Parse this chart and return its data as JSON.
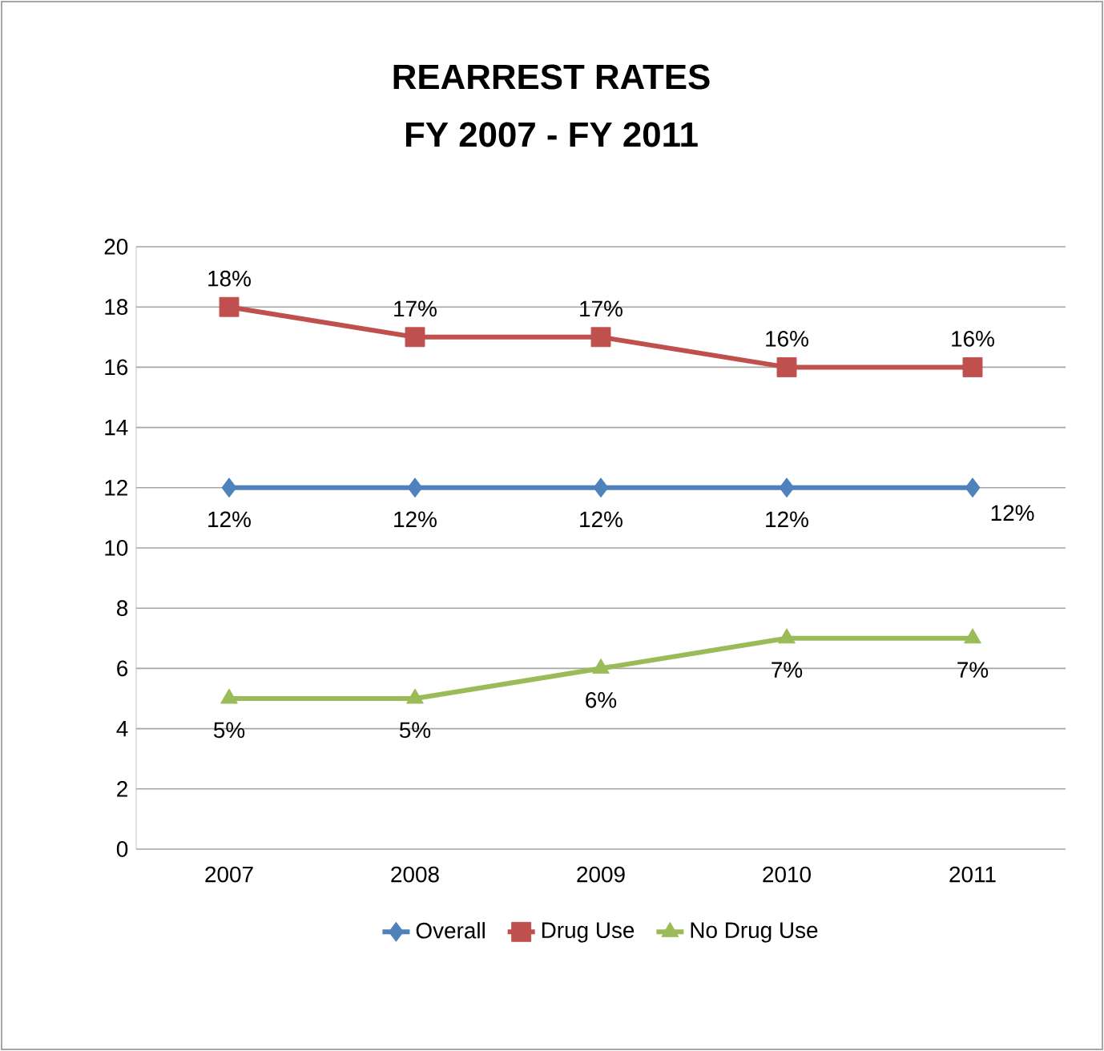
{
  "chart_data": {
    "type": "line",
    "title": "REARREST RATES",
    "subtitle": "FY 2007 - FY 2011",
    "categories": [
      "2007",
      "2008",
      "2009",
      "2010",
      "2011"
    ],
    "series": [
      {
        "name": "Overall",
        "color": "#4f81bd",
        "marker": "diamond",
        "values": [
          12,
          12,
          12,
          12,
          12
        ],
        "value_labels": [
          "12%",
          "12%",
          "12%",
          "12%",
          "12%"
        ]
      },
      {
        "name": "Drug Use",
        "color": "#c0504d",
        "marker": "square",
        "values": [
          18,
          17,
          17,
          16,
          16
        ],
        "value_labels": [
          "18%",
          "17%",
          "17%",
          "16%",
          "16%"
        ]
      },
      {
        "name": "No Drug Use",
        "color": "#9bbb59",
        "marker": "triangle",
        "values": [
          5,
          5,
          6,
          7,
          7
        ],
        "value_labels": [
          "5%",
          "5%",
          "6%",
          "7%",
          "7%"
        ]
      }
    ],
    "ylim": [
      0,
      20
    ],
    "yticks": [
      0,
      2,
      4,
      6,
      8,
      10,
      12,
      14,
      16,
      18,
      20
    ],
    "grid": "y",
    "legend": "bottom",
    "line_style": "solid"
  }
}
